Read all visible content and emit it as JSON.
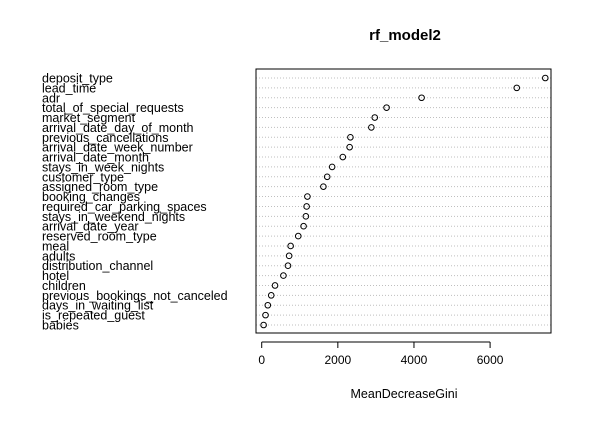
{
  "chart_data": {
    "type": "scatter",
    "title": "rf_model2",
    "xlabel": "MeanDecreaseGini",
    "ylabel": "",
    "xlim": [
      -150,
      7600
    ],
    "xticks": [
      0,
      2000,
      4000,
      6000
    ],
    "grid": "horizontal-dotted",
    "categories": [
      "deposit_type",
      "lead_time",
      "adr",
      "total_of_special_requests",
      "market_segment",
      "arrival_date_day_of_month",
      "previous_cancellations",
      "arrival_date_week_number",
      "arrival_date_month",
      "stays_in_week_nights",
      "customer_type",
      "assigned_room_type",
      "booking_changes",
      "required_car_parking_spaces",
      "stays_in_weekend_nights",
      "arrival_date_year",
      "reserved_room_type",
      "meal",
      "adults",
      "distribution_channel",
      "hotel",
      "children",
      "previous_bookings_not_canceled",
      "days_in_waiting_list",
      "is_repeated_guest",
      "babies"
    ],
    "values": [
      7450,
      6700,
      4200,
      3280,
      2970,
      2880,
      2330,
      2310,
      2130,
      1850,
      1720,
      1620,
      1200,
      1180,
      1160,
      1100,
      960,
      760,
      720,
      690,
      570,
      350,
      250,
      160,
      100,
      50
    ]
  }
}
